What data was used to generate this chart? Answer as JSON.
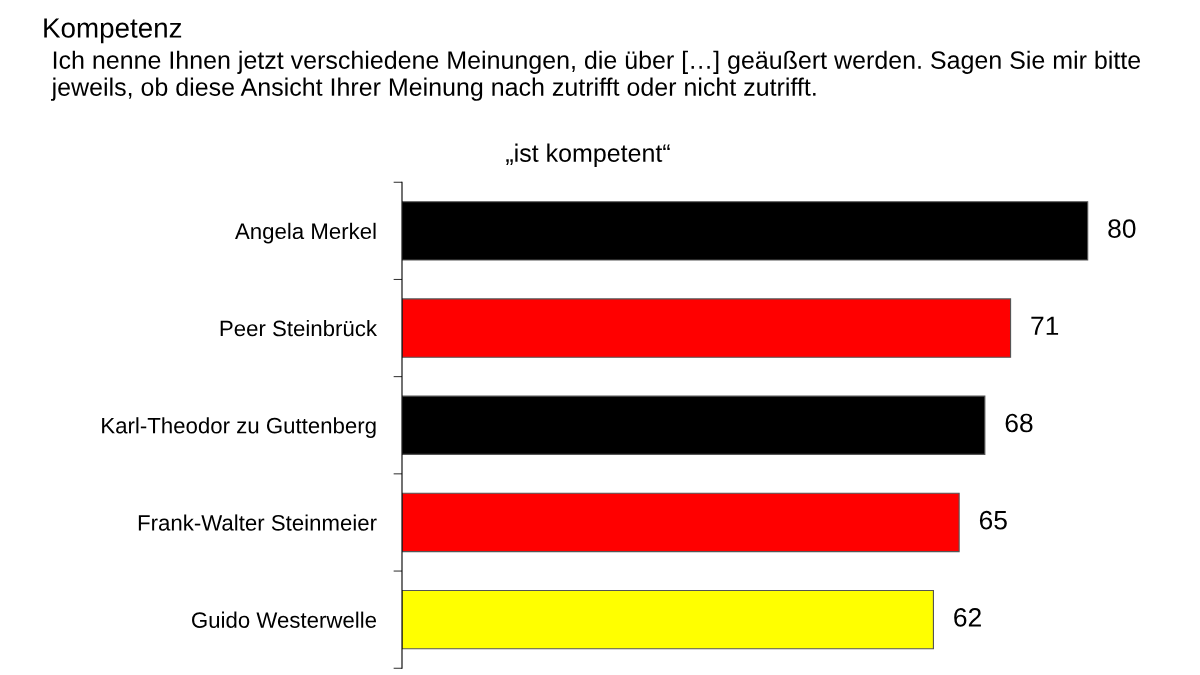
{
  "chart_data": {
    "type": "bar",
    "orientation": "horizontal",
    "title": "Kompetenz",
    "subtitle": "Ich nenne Ihnen jetzt verschiedene Meinungen, die über […] geäußert werden. Sagen Sie mir bitte jeweils, ob diese Ansicht Ihrer Meinung nach zutrifft oder nicht zutrifft.",
    "annotations": [
      "„ist kompetent“"
    ],
    "categories": [
      "Angela Merkel",
      "Peer Steinbrück",
      "Karl-Theodor zu Guttenberg",
      "Frank-Walter Steinmeier",
      "Guido Westerwelle"
    ],
    "values": [
      80,
      71,
      68,
      65,
      62
    ],
    "colors": [
      "#000000",
      "#ff0000",
      "#000000",
      "#ff0000",
      "#ffff00"
    ],
    "data_labels": true,
    "grid": false,
    "legend": false
  }
}
